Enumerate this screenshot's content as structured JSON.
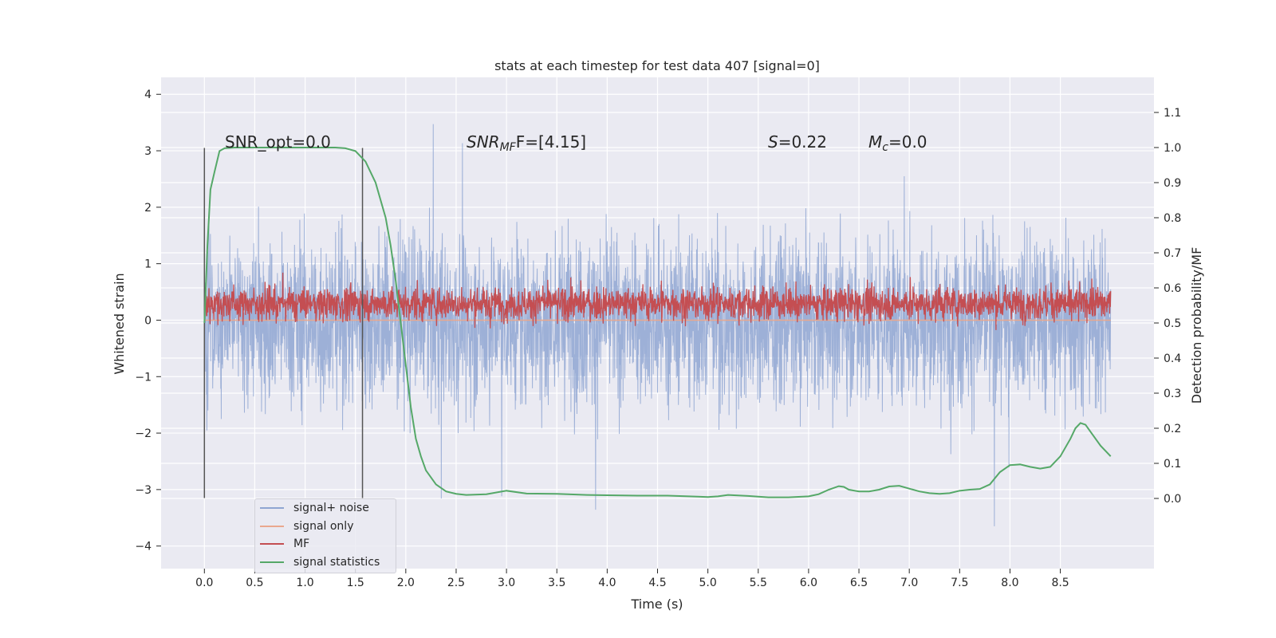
{
  "chart_data": {
    "type": "line",
    "title": "stats at each timestep for test data 407 [signal=0]",
    "xlabel": "Time (s)",
    "ylabel_left": "Whitened strain",
    "ylabel_right": "Detection probability/MF",
    "xlim": [
      -0.43,
      9.43
    ],
    "ylim_left": [
      -4.4,
      4.3
    ],
    "ylim_right": [
      -0.2,
      1.2
    ],
    "x_ticks": [
      "0.0",
      "0.5",
      "1.0",
      "1.5",
      "2.0",
      "2.5",
      "3.0",
      "3.5",
      "4.0",
      "4.5",
      "5.0",
      "5.5",
      "6.0",
      "6.5",
      "7.0",
      "7.5",
      "8.0",
      "8.5"
    ],
    "y_ticks_left": [
      "−4",
      "−3",
      "−2",
      "−1",
      "0",
      "1",
      "2",
      "3",
      "4"
    ],
    "y_ticks_right": [
      "0.0",
      "0.1",
      "0.2",
      "0.3",
      "0.4",
      "0.5",
      "0.6",
      "0.7",
      "0.8",
      "0.9",
      "1.0",
      "1.1"
    ],
    "annotations": {
      "snr_opt": "SNR_opt=0.0",
      "snr_mf_symbol": "SNR",
      "snr_mf_sub": "MF",
      "snr_mf_suffix": "F=[4.15]",
      "s_symbol": "S",
      "s_value": "=0.22",
      "mc_symbol": "M",
      "mc_sub": "c",
      "mc_value": "=0.0"
    },
    "window_markers": [
      0.0,
      1.57
    ],
    "series": [
      {
        "name": "signal+ noise",
        "color": "#8fa6d2",
        "axis": "left",
        "x_range": [
          0.0,
          9.0
        ],
        "amplitude_range": [
          -4.0,
          3.9
        ]
      },
      {
        "name": "signal only",
        "color": "#eaa88e",
        "axis": "left",
        "values": "flat zero"
      },
      {
        "name": "MF",
        "color": "#c44e52",
        "axis": "right",
        "x_range": [
          0.0,
          9.0
        ],
        "approx_range": [
          0.47,
          0.67
        ]
      },
      {
        "name": "signal statistics",
        "color": "#55a868",
        "axis": "right",
        "x": [
          0.0,
          0.03,
          0.06,
          0.1,
          0.15,
          0.2,
          0.3,
          0.5,
          0.8,
          1.0,
          1.2,
          1.3,
          1.4,
          1.5,
          1.6,
          1.7,
          1.8,
          1.85,
          1.9,
          1.95,
          2.0,
          2.05,
          2.1,
          2.15,
          2.2,
          2.3,
          2.4,
          2.5,
          2.6,
          2.8,
          3.0,
          3.2,
          3.5,
          3.8,
          4.0,
          4.3,
          4.6,
          4.9,
          5.0,
          5.1,
          5.2,
          5.4,
          5.6,
          5.8,
          6.0,
          6.1,
          6.2,
          6.3,
          6.35,
          6.4,
          6.5,
          6.6,
          6.7,
          6.8,
          6.9,
          7.0,
          7.1,
          7.2,
          7.3,
          7.4,
          7.5,
          7.6,
          7.7,
          7.8,
          7.9,
          8.0,
          8.1,
          8.2,
          8.3,
          8.4,
          8.5,
          8.6,
          8.65,
          8.7,
          8.75,
          8.8,
          8.9,
          9.0
        ],
        "values": [
          0.5,
          0.72,
          0.88,
          0.93,
          0.99,
          0.998,
          1.0,
          1.0,
          1.0,
          1.0,
          1.0,
          1.0,
          0.998,
          0.99,
          0.96,
          0.9,
          0.8,
          0.72,
          0.62,
          0.5,
          0.38,
          0.26,
          0.17,
          0.12,
          0.08,
          0.04,
          0.02,
          0.013,
          0.01,
          0.012,
          0.022,
          0.014,
          0.013,
          0.01,
          0.009,
          0.008,
          0.008,
          0.005,
          0.004,
          0.006,
          0.01,
          0.007,
          0.003,
          0.003,
          0.006,
          0.012,
          0.025,
          0.035,
          0.033,
          0.025,
          0.02,
          0.02,
          0.025,
          0.034,
          0.036,
          0.028,
          0.02,
          0.015,
          0.013,
          0.015,
          0.022,
          0.025,
          0.027,
          0.04,
          0.075,
          0.095,
          0.097,
          0.09,
          0.085,
          0.09,
          0.12,
          0.17,
          0.2,
          0.215,
          0.21,
          0.19,
          0.15,
          0.12
        ]
      }
    ],
    "legend_position": "bottom-left"
  }
}
